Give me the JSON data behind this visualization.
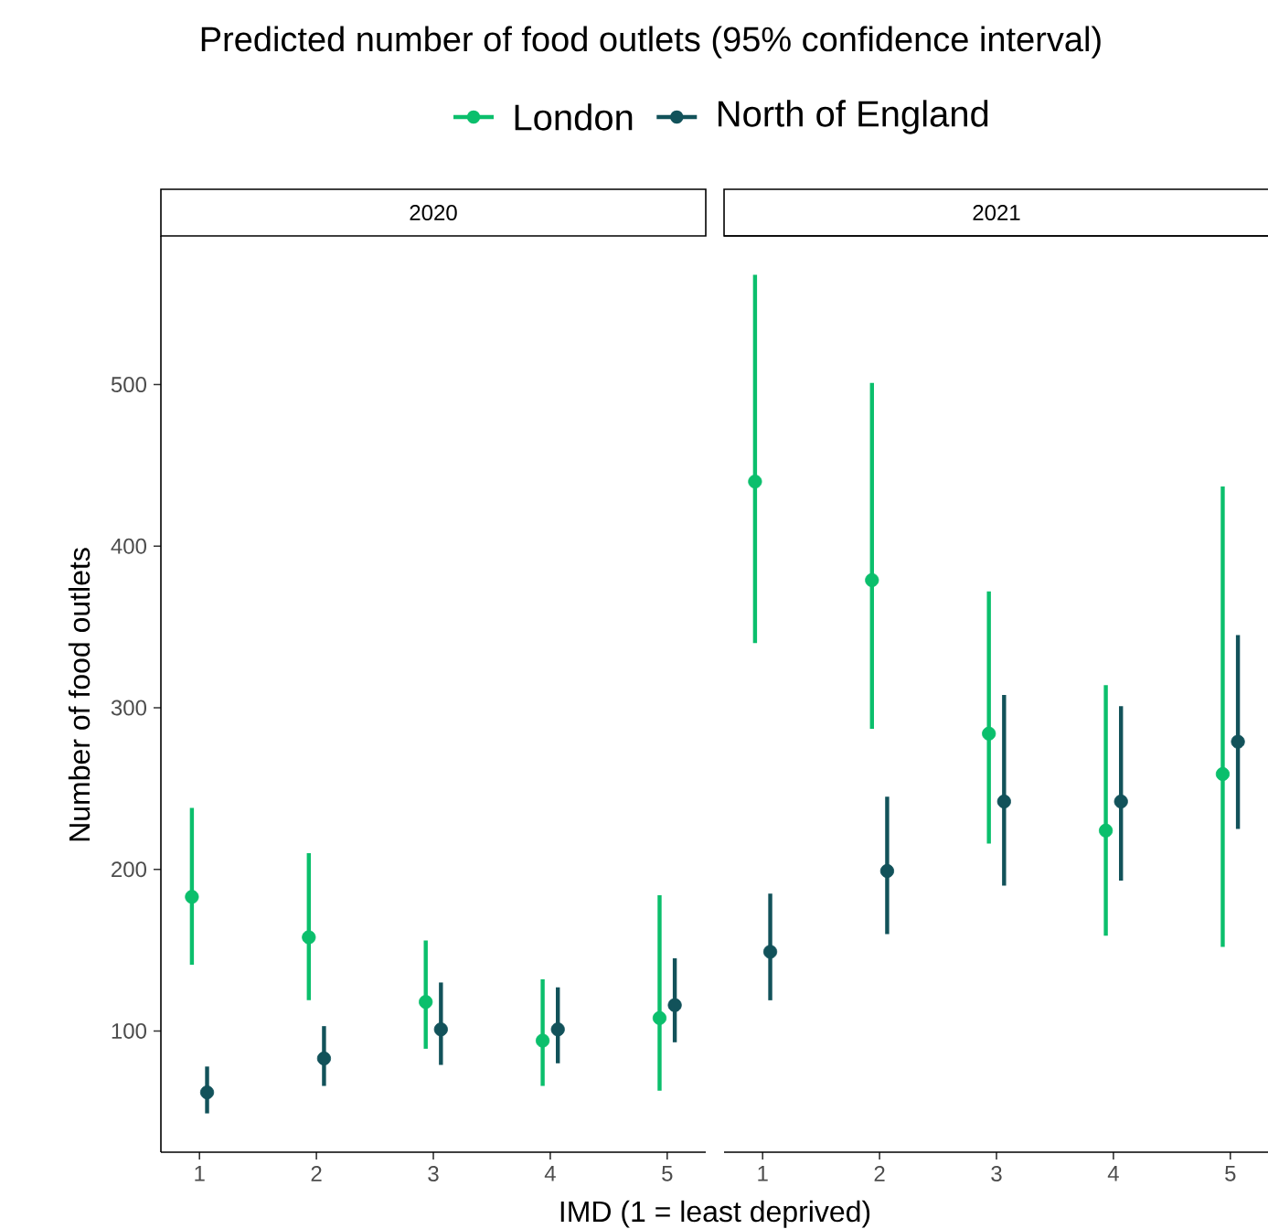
{
  "chart_data": [
    {
      "type": "scatter",
      "title": "Predicted number of food outlets (95% confidence interval)",
      "subtitle": "2020",
      "xlabel": "IMD (1 = least deprived)",
      "ylabel": "Number of food outlets",
      "categories": [
        "1",
        "2",
        "3",
        "4",
        "5"
      ],
      "ylim": [
        25,
        592
      ],
      "yticks": [
        100,
        200,
        300,
        400,
        500
      ],
      "legend": "top",
      "marker": "circle",
      "series": [
        {
          "name": "London",
          "color": "#0bbf6c",
          "values": [
            183,
            158,
            118,
            94,
            108
          ],
          "errors": [
            [
              141,
              238
            ],
            [
              119,
              210
            ],
            [
              89,
              156
            ],
            [
              66,
              132
            ],
            [
              63,
              184
            ]
          ]
        },
        {
          "name": "North of England",
          "color": "#12525a",
          "values": [
            62,
            83,
            101,
            101,
            116
          ],
          "errors": [
            [
              49,
              78
            ],
            [
              66,
              103
            ],
            [
              79,
              130
            ],
            [
              80,
              127
            ],
            [
              93,
              145
            ]
          ]
        }
      ]
    },
    {
      "type": "scatter",
      "subtitle": "2021",
      "categories": [
        "1",
        "2",
        "3",
        "4",
        "5"
      ],
      "ylim": [
        25,
        592
      ],
      "yticks": [
        100,
        200,
        300,
        400,
        500
      ],
      "tick_labels": "x",
      "marker": "circle",
      "series": [
        {
          "color": "#0bbf6c",
          "values": [
            440,
            379,
            284,
            224,
            259
          ],
          "errors": [
            [
              340,
              568
            ],
            [
              287,
              501
            ],
            [
              216,
              372
            ],
            [
              159,
              314
            ],
            [
              152,
              437
            ]
          ]
        },
        {
          "color": "#12525a",
          "values": [
            149,
            199,
            242,
            242,
            279
          ],
          "errors": [
            [
              119,
              185
            ],
            [
              160,
              245
            ],
            [
              190,
              308
            ],
            [
              193,
              301
            ],
            [
              225,
              345
            ]
          ]
        }
      ]
    }
  ]
}
